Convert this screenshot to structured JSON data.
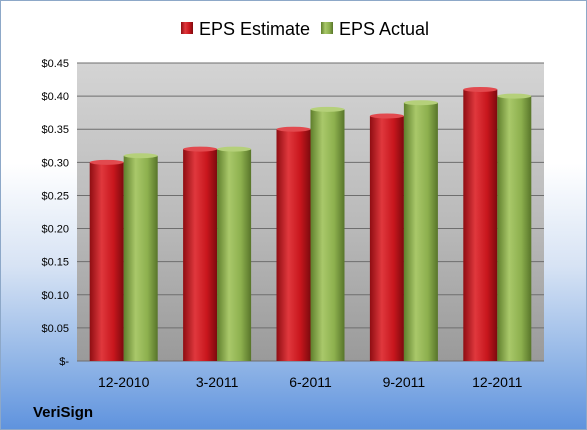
{
  "company_label": "VeriSign",
  "colors": {
    "estimate": "#c8161d",
    "actual": "#8db04e"
  },
  "chart_data": {
    "type": "bar",
    "title": "",
    "xlabel": "",
    "ylabel": "",
    "categories": [
      "12-2010",
      "3-2011",
      "6-2011",
      "9-2011",
      "12-2011"
    ],
    "series": [
      {
        "name": "EPS Estimate",
        "values": [
          0.3,
          0.32,
          0.35,
          0.37,
          0.41
        ]
      },
      {
        "name": "EPS Actual",
        "values": [
          0.31,
          0.32,
          0.38,
          0.39,
          0.4
        ]
      }
    ],
    "ylim": [
      0,
      0.45
    ],
    "yticks": [
      0,
      0.05,
      0.1,
      0.15,
      0.2,
      0.25,
      0.3,
      0.35,
      0.4,
      0.45
    ],
    "ytick_labels": [
      "$-",
      "$0.05",
      "$0.10",
      "$0.15",
      "$0.20",
      "$0.25",
      "$0.30",
      "$0.35",
      "$0.40",
      "$0.45"
    ],
    "grid": true,
    "legend": "top"
  }
}
